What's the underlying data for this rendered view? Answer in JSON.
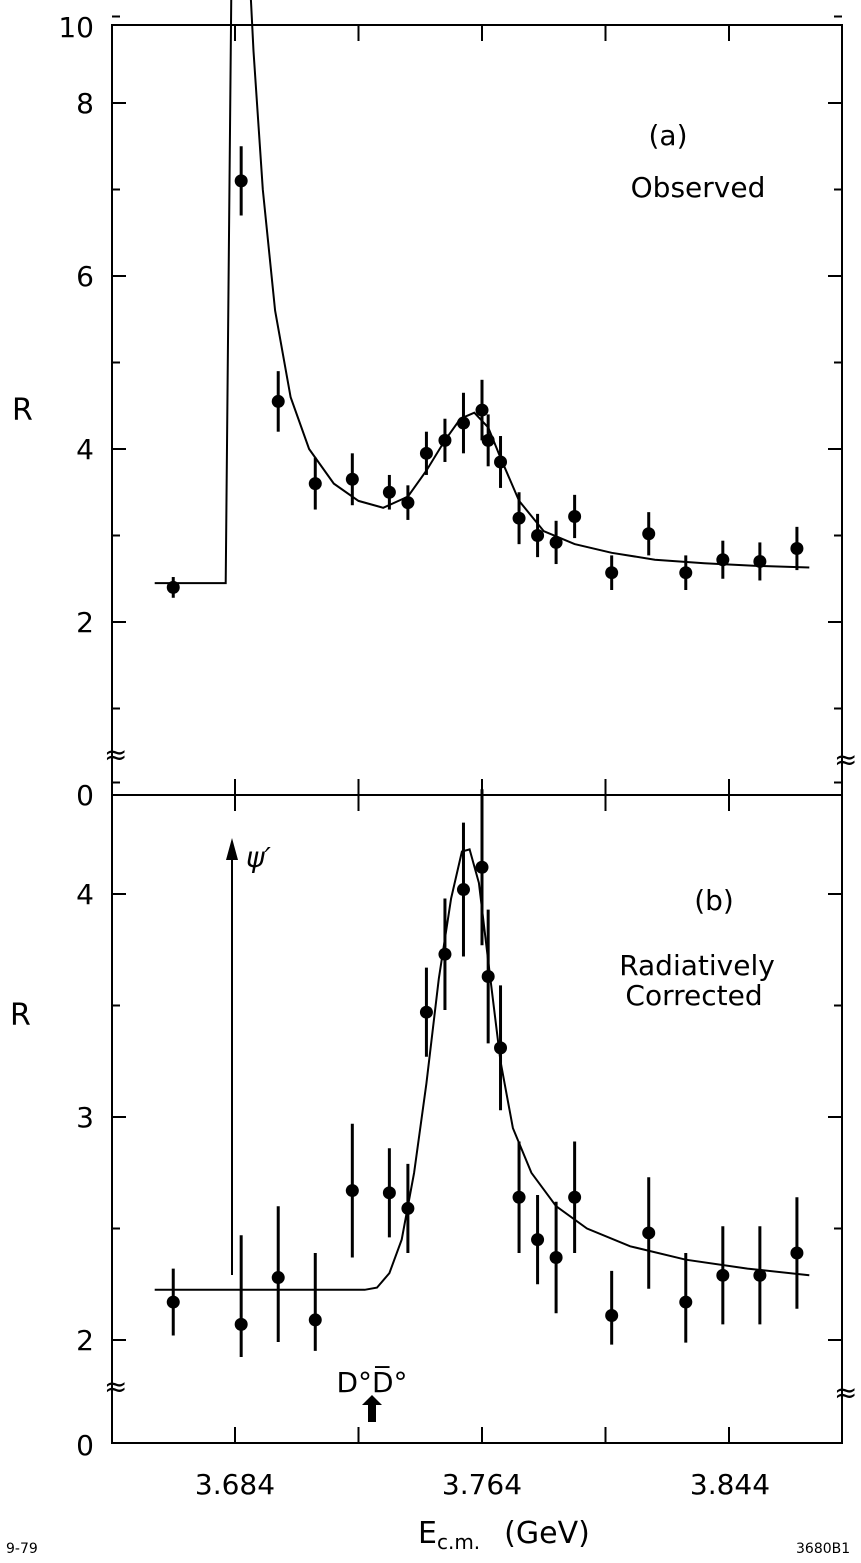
{
  "chart_data": [
    {
      "type": "scatter",
      "panel_label": "(a)",
      "annotation": "Observed",
      "ylabel": "R",
      "ylim": [
        0,
        10
      ],
      "yticks": [
        "0",
        "2",
        "4",
        "6",
        "8",
        "10"
      ],
      "xlim": [
        3.654,
        3.874
      ],
      "axis_break": "≈",
      "points": [
        {
          "x": 3.664,
          "y": 2.4,
          "err": 0.12
        },
        {
          "x": 3.686,
          "y": 7.1,
          "err": 0.4
        },
        {
          "x": 3.698,
          "y": 4.55,
          "err": 0.35
        },
        {
          "x": 3.71,
          "y": 3.6,
          "err": 0.3
        },
        {
          "x": 3.722,
          "y": 3.65,
          "err": 0.3
        },
        {
          "x": 3.734,
          "y": 3.5,
          "err": 0.2
        },
        {
          "x": 3.74,
          "y": 3.38,
          "err": 0.2
        },
        {
          "x": 3.746,
          "y": 3.95,
          "err": 0.25
        },
        {
          "x": 3.752,
          "y": 4.1,
          "err": 0.25
        },
        {
          "x": 3.758,
          "y": 4.3,
          "err": 0.35
        },
        {
          "x": 3.764,
          "y": 4.45,
          "err": 0.35
        },
        {
          "x": 3.766,
          "y": 4.1,
          "err": 0.3
        },
        {
          "x": 3.77,
          "y": 3.85,
          "err": 0.3
        },
        {
          "x": 3.776,
          "y": 3.2,
          "err": 0.3
        },
        {
          "x": 3.782,
          "y": 3.0,
          "err": 0.25
        },
        {
          "x": 3.788,
          "y": 2.92,
          "err": 0.25
        },
        {
          "x": 3.794,
          "y": 3.22,
          "err": 0.25
        },
        {
          "x": 3.806,
          "y": 2.57,
          "err": 0.2
        },
        {
          "x": 3.818,
          "y": 3.02,
          "err": 0.25
        },
        {
          "x": 3.83,
          "y": 2.57,
          "err": 0.2
        },
        {
          "x": 3.842,
          "y": 2.72,
          "err": 0.22
        },
        {
          "x": 3.854,
          "y": 2.7,
          "err": 0.22
        },
        {
          "x": 3.866,
          "y": 2.85,
          "err": 0.25
        }
      ],
      "curve": [
        [
          3.658,
          2.45
        ],
        [
          3.681,
          2.45
        ],
        [
          3.681,
          2.45
        ],
        [
          3.683,
          10.0
        ],
        [
          3.688,
          10.0
        ],
        [
          3.69,
          8.6
        ],
        [
          3.693,
          7.0
        ],
        [
          3.697,
          5.6
        ],
        [
          3.702,
          4.6
        ],
        [
          3.708,
          4.0
        ],
        [
          3.716,
          3.6
        ],
        [
          3.724,
          3.4
        ],
        [
          3.732,
          3.32
        ],
        [
          3.74,
          3.45
        ],
        [
          3.746,
          3.75
        ],
        [
          3.752,
          4.1
        ],
        [
          3.757,
          4.35
        ],
        [
          3.7615,
          4.42
        ],
        [
          3.766,
          4.25
        ],
        [
          3.77,
          3.9
        ],
        [
          3.776,
          3.4
        ],
        [
          3.784,
          3.05
        ],
        [
          3.794,
          2.9
        ],
        [
          3.806,
          2.8
        ],
        [
          3.82,
          2.72
        ],
        [
          3.836,
          2.68
        ],
        [
          3.852,
          2.65
        ],
        [
          3.87,
          2.63
        ]
      ]
    },
    {
      "type": "scatter",
      "panel_label": "(b)",
      "annotation_lines": [
        "Radiatively",
        "Corrected"
      ],
      "ylabel": "R",
      "ylim": [
        0,
        4.6
      ],
      "yticks": [
        "0",
        "2",
        "3",
        "4"
      ],
      "xlim": [
        3.654,
        3.874
      ],
      "xticks": [
        "3.684",
        "3.764",
        "3.844"
      ],
      "xlabel_main": "E",
      "xlabel_sub": "c.m.",
      "xlabel_unit": "(GeV)",
      "axis_break": "≈",
      "psi_prime_label": "ψ′",
      "psi_prime_x": 3.6818,
      "threshold_label": "D°D̅°",
      "threshold_x": 3.7296,
      "points": [
        {
          "x": 3.664,
          "y": 2.17,
          "err": 0.15
        },
        {
          "x": 3.686,
          "y": 2.07,
          "err": 0.4
        },
        {
          "x": 3.698,
          "y": 2.28,
          "err": 0.32
        },
        {
          "x": 3.71,
          "y": 2.09,
          "err": 0.3
        },
        {
          "x": 3.722,
          "y": 2.67,
          "err": 0.3
        },
        {
          "x": 3.734,
          "y": 2.66,
          "err": 0.2
        },
        {
          "x": 3.74,
          "y": 2.59,
          "err": 0.2
        },
        {
          "x": 3.746,
          "y": 3.47,
          "err": 0.2
        },
        {
          "x": 3.752,
          "y": 3.73,
          "err": 0.25
        },
        {
          "x": 3.758,
          "y": 4.02,
          "err": 0.3
        },
        {
          "x": 3.764,
          "y": 4.12,
          "err": 0.35
        },
        {
          "x": 3.766,
          "y": 3.63,
          "err": 0.3
        },
        {
          "x": 3.77,
          "y": 3.31,
          "err": 0.28
        },
        {
          "x": 3.776,
          "y": 2.64,
          "err": 0.25
        },
        {
          "x": 3.782,
          "y": 2.45,
          "err": 0.2
        },
        {
          "x": 3.788,
          "y": 2.37,
          "err": 0.25
        },
        {
          "x": 3.794,
          "y": 2.64,
          "err": 0.25
        },
        {
          "x": 3.806,
          "y": 2.11,
          "err": 0.2
        },
        {
          "x": 3.818,
          "y": 2.48,
          "err": 0.25
        },
        {
          "x": 3.83,
          "y": 2.17,
          "err": 0.22
        },
        {
          "x": 3.842,
          "y": 2.29,
          "err": 0.22
        },
        {
          "x": 3.854,
          "y": 2.29,
          "err": 0.22
        },
        {
          "x": 3.866,
          "y": 2.39,
          "err": 0.25
        }
      ],
      "curve": [
        [
          3.658,
          2.225
        ],
        [
          3.726,
          2.225
        ],
        [
          3.73,
          2.235
        ],
        [
          3.734,
          2.3
        ],
        [
          3.738,
          2.45
        ],
        [
          3.742,
          2.75
        ],
        [
          3.746,
          3.15
        ],
        [
          3.75,
          3.62
        ],
        [
          3.754,
          3.98
        ],
        [
          3.7575,
          4.19
        ],
        [
          3.76,
          4.2
        ],
        [
          3.763,
          4.05
        ],
        [
          3.766,
          3.7
        ],
        [
          3.77,
          3.25
        ],
        [
          3.774,
          2.95
        ],
        [
          3.78,
          2.75
        ],
        [
          3.788,
          2.6
        ],
        [
          3.798,
          2.5
        ],
        [
          3.812,
          2.42
        ],
        [
          3.83,
          2.36
        ],
        [
          3.85,
          2.32
        ],
        [
          3.87,
          2.29
        ]
      ]
    }
  ],
  "footer": {
    "date_code": "9-79",
    "figure_id": "3680B1"
  }
}
